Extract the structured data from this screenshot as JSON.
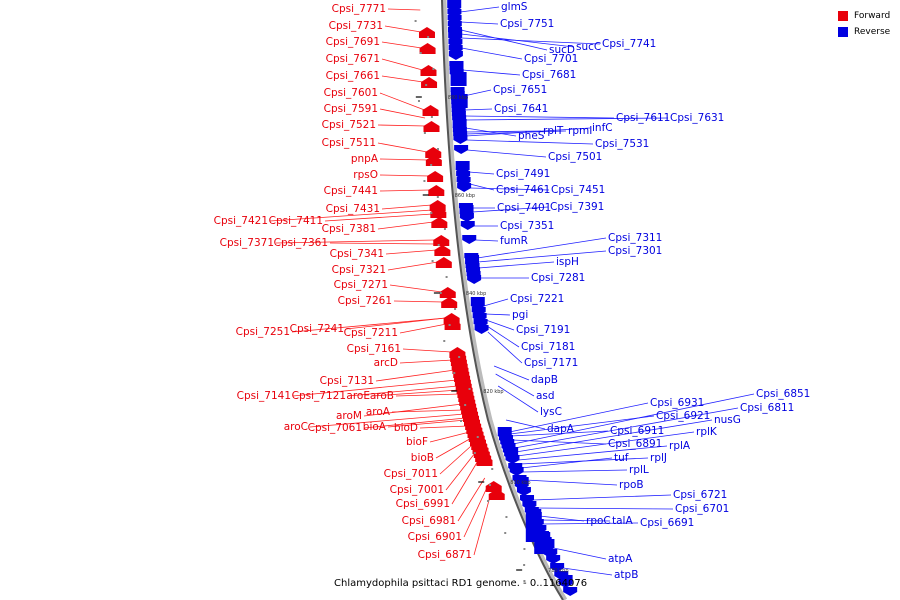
{
  "caption": "Chlamydophila psittaci RD1 genome. - 0..1164076",
  "legend": [
    {
      "label": "Forward",
      "color": "#e8000b"
    },
    {
      "label": "Reverse",
      "color": "#0000e0"
    }
  ],
  "strand_colors": {
    "forward": "#e8000b",
    "reverse": "#0000e0",
    "line_forward": "#ff2020",
    "line_reverse": "#2020ff"
  },
  "ticks": [
    "880 kbp",
    "860 kbp",
    "840 kbp",
    "820 kbp",
    "800 kbp",
    "780 kbp"
  ],
  "forward_labels": [
    "Cpsi_7771",
    "Cpsi_7731",
    "Cpsi_7691",
    "Cpsi_7671",
    "Cpsi_7661",
    "Cpsi_7601",
    "Cpsi_7591",
    "Cpsi_7521",
    "Cpsi_7511",
    "pnpA",
    "rpsO",
    "Cpsi_7441",
    "Cpsi_7431",
    "Cpsi_7421",
    "Cpsi_7411",
    "Cpsi_7381",
    "Cpsi_7371",
    "Cpsi_7361",
    "Cpsi_7341",
    "Cpsi_7321",
    "Cpsi_7271",
    "Cpsi_7261",
    "Cpsi_7251",
    "Cpsi_7241",
    "Cpsi_7211",
    "Cpsi_7161",
    "arcD",
    "Cpsi_7131",
    "Cpsi_7141",
    "Cpsi_7121",
    "aroE",
    "aroB",
    "aroM",
    "aroA",
    "aroC",
    "Cpsi_7061",
    "bioA",
    "bioD",
    "bioF",
    "bioB",
    "Cpsi_7011",
    "Cpsi_7001",
    "Cpsi_6991",
    "Cpsi_6981",
    "Cpsi_6901",
    "Cpsi_6871"
  ],
  "reverse_labels": [
    "glmS",
    "Cpsi_7751",
    "sucD",
    "sucC",
    "Cpsi_7741",
    "Cpsi_7701",
    "Cpsi_7681",
    "Cpsi_7651",
    "Cpsi_7641",
    "Cpsi_7611",
    "Cpsi_7631",
    "pheS",
    "rplT",
    "rpmI",
    "infC",
    "Cpsi_7531",
    "Cpsi_7501",
    "Cpsi_7491",
    "Cpsi_7461",
    "Cpsi_7451",
    "Cpsi_7401",
    "Cpsi_7391",
    "Cpsi_7351",
    "fumR",
    "Cpsi_7311",
    "Cpsi_7301",
    "ispH",
    "Cpsi_7281",
    "Cpsi_7221",
    "pgi",
    "Cpsi_7191",
    "Cpsi_7181",
    "Cpsi_7171",
    "dapB",
    "asd",
    "lysC",
    "dapA",
    "Cpsi_6931",
    "Cpsi_6921",
    "Cpsi_6911",
    "Cpsi_6891",
    "Cpsi_6851",
    "Cpsi_6811",
    "nusG",
    "rplK",
    "rplA",
    "rplJ",
    "tuf",
    "rplL",
    "rpoB",
    "Cpsi_6721",
    "Cpsi_6701",
    "rpoC",
    "talA",
    "Cpsi_6691",
    "atpA",
    "atpB"
  ]
}
